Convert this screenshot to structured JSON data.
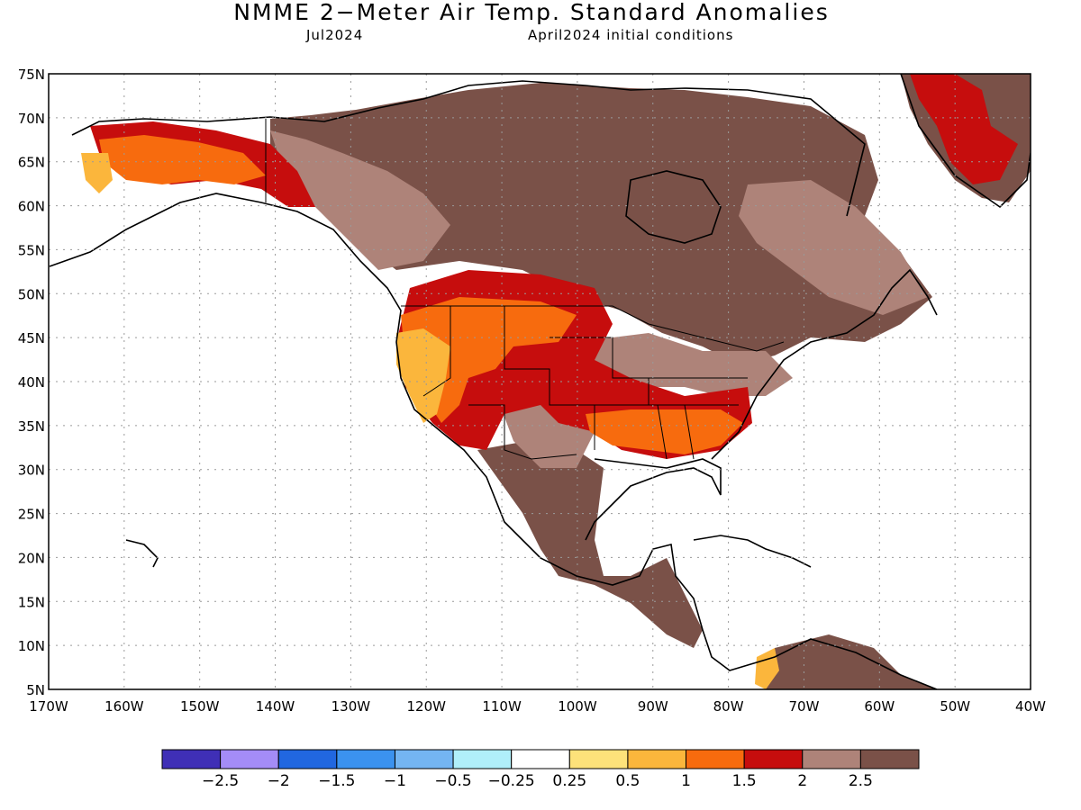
{
  "title": "NMME 2−Meter Air Temp. Standard Anomalies",
  "valid_month": "Jul2024",
  "initial_conditions": "April2024 initial conditions",
  "map": {
    "lon_range": [
      -170,
      -40
    ],
    "lat_range": [
      5,
      75
    ],
    "lon_ticks": [
      "170W",
      "160W",
      "150W",
      "140W",
      "130W",
      "120W",
      "110W",
      "100W",
      "90W",
      "80W",
      "70W",
      "60W",
      "50W",
      "40W"
    ],
    "lat_ticks": [
      "75N",
      "70N",
      "65N",
      "60N",
      "55N",
      "50N",
      "45N",
      "40N",
      "35N",
      "30N",
      "25N",
      "20N",
      "15N",
      "10N",
      "5N"
    ],
    "grid": true,
    "colors": {
      "ocean": "#ffffff",
      "neutral_land": "#ffffff",
      "coast": "#000000"
    }
  },
  "colorbar": {
    "colors": [
      "#3f2fb6",
      "#a48cf7",
      "#2167e0",
      "#3b92ef",
      "#74b5f2",
      "#b0effa",
      "#ffffff",
      "#fde27a",
      "#fbb63c",
      "#f76b0e",
      "#c60d0d",
      "#ae8379",
      "#7a5148"
    ],
    "labels": [
      "−2.5",
      "−2",
      "−1.5",
      "−1",
      "−0.5",
      "−0.25",
      "0.25",
      "0.5",
      "1",
      "1.5",
      "2",
      "2.5"
    ]
  }
}
